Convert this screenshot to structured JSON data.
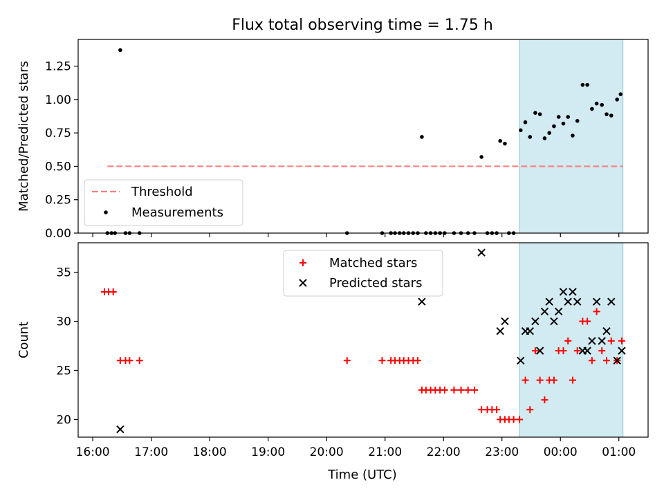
{
  "figure": {
    "title": "Flux total observing time = 1.75 h",
    "xlabel": "Time (UTC)"
  },
  "chart_data": [
    {
      "type": "scatter",
      "name": "ratio-panel",
      "ylabel": "Matched/Predicted stars",
      "xlim": [
        15.75,
        25.5
      ],
      "ylim": [
        0,
        1.45
      ],
      "yticks": [
        0.0,
        0.25,
        0.5,
        0.75,
        1.0,
        1.25
      ],
      "ytick_labels": [
        "0.00",
        "0.25",
        "0.50",
        "0.75",
        "1.00",
        "1.25"
      ],
      "highlight_span": {
        "x": [
          23.3,
          25.07
        ],
        "color": "#add8e6"
      },
      "threshold": {
        "name": "Threshold",
        "y": 0.5,
        "x": [
          16.25,
          25.07
        ],
        "color": "#ff7f7f",
        "style": "dashed"
      },
      "legend": {
        "position": "lower-left",
        "entries": [
          "Threshold",
          "Measurements"
        ]
      },
      "series": [
        {
          "name": "Measurements",
          "marker": "dot",
          "color": "#000000",
          "points": [
            [
              16.25,
              0
            ],
            [
              16.32,
              0
            ],
            [
              16.38,
              0
            ],
            [
              16.47,
              1.37
            ],
            [
              16.56,
              0
            ],
            [
              16.63,
              0
            ],
            [
              16.8,
              0
            ],
            [
              20.35,
              0
            ],
            [
              20.95,
              0
            ],
            [
              21.1,
              0
            ],
            [
              21.17,
              0
            ],
            [
              21.25,
              0
            ],
            [
              21.32,
              0
            ],
            [
              21.4,
              0
            ],
            [
              21.48,
              0
            ],
            [
              21.56,
              0
            ],
            [
              21.63,
              0.72
            ],
            [
              21.7,
              0
            ],
            [
              21.78,
              0
            ],
            [
              21.86,
              0
            ],
            [
              21.94,
              0
            ],
            [
              22.02,
              0
            ],
            [
              22.18,
              0
            ],
            [
              22.3,
              0
            ],
            [
              22.42,
              0
            ],
            [
              22.53,
              0
            ],
            [
              22.65,
              0.57
            ],
            [
              22.75,
              0
            ],
            [
              22.83,
              0
            ],
            [
              22.91,
              0
            ],
            [
              22.97,
              0.69
            ],
            [
              23.05,
              0.67
            ],
            [
              23.12,
              0
            ],
            [
              23.2,
              0
            ],
            [
              23.32,
              0.77
            ],
            [
              23.4,
              0.83
            ],
            [
              23.48,
              0.72
            ],
            [
              23.57,
              0.9
            ],
            [
              23.65,
              0.89
            ],
            [
              23.73,
              0.71
            ],
            [
              23.81,
              0.75
            ],
            [
              23.89,
              0.8
            ],
            [
              23.97,
              0.87
            ],
            [
              24.05,
              0.82
            ],
            [
              24.13,
              0.87
            ],
            [
              24.21,
              0.73
            ],
            [
              24.29,
              0.84
            ],
            [
              24.38,
              1.11
            ],
            [
              24.46,
              1.11
            ],
            [
              24.54,
              0.93
            ],
            [
              24.62,
              0.97
            ],
            [
              24.71,
              0.96
            ],
            [
              24.79,
              0.89
            ],
            [
              24.87,
              0.88
            ],
            [
              24.97,
              1.0
            ],
            [
              25.03,
              1.04
            ]
          ]
        }
      ]
    },
    {
      "type": "scatter",
      "name": "count-panel",
      "ylabel": "Count",
      "xlim": [
        15.75,
        25.5
      ],
      "ylim": [
        18.2,
        38.0
      ],
      "yticks": [
        20,
        25,
        30,
        35
      ],
      "ytick_labels": [
        "20",
        "25",
        "30",
        "35"
      ],
      "xticks": [
        16,
        17,
        18,
        19,
        20,
        21,
        22,
        23,
        24,
        25
      ],
      "xtick_labels": [
        "16:00",
        "17:00",
        "18:00",
        "19:00",
        "20:00",
        "21:00",
        "22:00",
        "23:00",
        "00:00",
        "01:00"
      ],
      "highlight_span": {
        "x": [
          23.3,
          25.07
        ],
        "color": "#add8e6"
      },
      "legend": {
        "position": "upper-center",
        "entries": [
          "Matched stars",
          "Predicted stars"
        ]
      },
      "series": [
        {
          "name": "Matched stars",
          "marker": "plus",
          "color": "#ff0000",
          "points": [
            [
              16.2,
              33
            ],
            [
              16.27,
              33
            ],
            [
              16.35,
              33
            ],
            [
              16.47,
              26
            ],
            [
              16.56,
              26
            ],
            [
              16.63,
              26
            ],
            [
              16.8,
              26
            ],
            [
              20.35,
              26
            ],
            [
              20.95,
              26
            ],
            [
              21.1,
              26
            ],
            [
              21.17,
              26
            ],
            [
              21.25,
              26
            ],
            [
              21.32,
              26
            ],
            [
              21.4,
              26
            ],
            [
              21.48,
              26
            ],
            [
              21.56,
              26
            ],
            [
              21.63,
              23
            ],
            [
              21.7,
              23
            ],
            [
              21.78,
              23
            ],
            [
              21.86,
              23
            ],
            [
              21.94,
              23
            ],
            [
              22.02,
              23
            ],
            [
              22.18,
              23
            ],
            [
              22.3,
              23
            ],
            [
              22.42,
              23
            ],
            [
              22.53,
              23
            ],
            [
              22.65,
              21
            ],
            [
              22.75,
              21
            ],
            [
              22.83,
              21
            ],
            [
              22.91,
              21
            ],
            [
              22.97,
              20
            ],
            [
              23.05,
              20
            ],
            [
              23.12,
              20
            ],
            [
              23.2,
              20
            ],
            [
              23.3,
              20
            ],
            [
              23.4,
              24
            ],
            [
              23.48,
              21
            ],
            [
              23.57,
              27
            ],
            [
              23.65,
              24
            ],
            [
              23.73,
              22
            ],
            [
              23.81,
              24
            ],
            [
              23.89,
              24
            ],
            [
              23.97,
              27
            ],
            [
              24.05,
              27
            ],
            [
              24.13,
              28
            ],
            [
              24.21,
              24
            ],
            [
              24.29,
              27
            ],
            [
              24.38,
              30
            ],
            [
              24.46,
              30
            ],
            [
              24.54,
              26
            ],
            [
              24.62,
              31
            ],
            [
              24.71,
              27
            ],
            [
              24.79,
              26
            ],
            [
              24.87,
              28
            ],
            [
              24.97,
              26
            ],
            [
              25.05,
              28
            ]
          ]
        },
        {
          "name": "Predicted stars",
          "marker": "x",
          "color": "#000000",
          "points": [
            [
              16.47,
              19
            ],
            [
              21.63,
              32
            ],
            [
              22.65,
              37
            ],
            [
              22.97,
              29
            ],
            [
              23.05,
              30
            ],
            [
              23.32,
              26
            ],
            [
              23.4,
              29
            ],
            [
              23.48,
              29
            ],
            [
              23.57,
              30
            ],
            [
              23.65,
              27
            ],
            [
              23.73,
              31
            ],
            [
              23.81,
              32
            ],
            [
              23.89,
              30
            ],
            [
              23.97,
              31
            ],
            [
              24.05,
              33
            ],
            [
              24.13,
              32
            ],
            [
              24.21,
              33
            ],
            [
              24.29,
              32
            ],
            [
              24.38,
              27
            ],
            [
              24.46,
              27
            ],
            [
              24.54,
              28
            ],
            [
              24.62,
              32
            ],
            [
              24.71,
              28
            ],
            [
              24.79,
              29
            ],
            [
              24.87,
              32
            ],
            [
              24.97,
              26
            ],
            [
              25.05,
              27
            ]
          ]
        }
      ]
    }
  ]
}
